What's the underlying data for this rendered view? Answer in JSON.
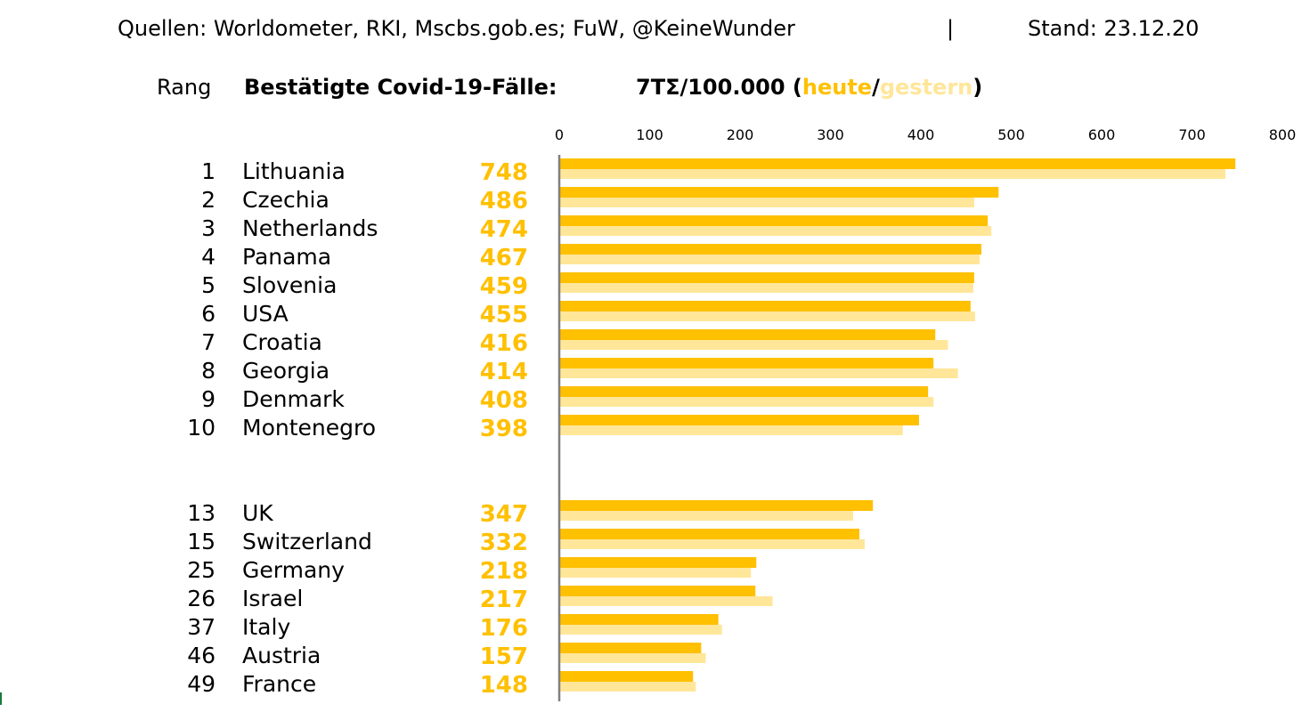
{
  "sources": {
    "text": "Quellen: Worldometer, RKI, Mscbs.gob.es; FuW, @KeineWunder",
    "separator": "|",
    "date": "Stand: 23.12.20"
  },
  "header": {
    "rank": "Rang",
    "title": "Bestätigte Covid-19-Fälle:",
    "metric_prefix": "7TΣ/100.000 (",
    "today": "heute",
    "slash": "/",
    "yesterday": "gestern",
    "metric_suffix": ")"
  },
  "colors": {
    "today": "#FFC000",
    "yesterday": "#FFE699",
    "axis": "#808080",
    "corner_mark": "#1b7a3a"
  },
  "chart_data": {
    "type": "bar",
    "orientation": "horizontal",
    "xlim": [
      0,
      800
    ],
    "xticks": [
      0,
      100,
      200,
      300,
      400,
      500,
      600,
      700,
      800
    ],
    "grid": false,
    "series": [
      {
        "name": "heute",
        "color": "#FFC000"
      },
      {
        "name": "gestern",
        "color": "#FFE699"
      }
    ],
    "rows": [
      {
        "rank": "1",
        "country": "Lithuania",
        "today": 748,
        "yesterday": 737
      },
      {
        "rank": "2",
        "country": "Czechia",
        "today": 486,
        "yesterday": 459
      },
      {
        "rank": "3",
        "country": "Netherlands",
        "today": 474,
        "yesterday": 478
      },
      {
        "rank": "4",
        "country": "Panama",
        "today": 467,
        "yesterday": 465
      },
      {
        "rank": "5",
        "country": "Slovenia",
        "today": 459,
        "yesterday": 458
      },
      {
        "rank": "6",
        "country": "USA",
        "today": 455,
        "yesterday": 460
      },
      {
        "rank": "7",
        "country": "Croatia",
        "today": 416,
        "yesterday": 430
      },
      {
        "rank": "8",
        "country": "Georgia",
        "today": 414,
        "yesterday": 441
      },
      {
        "rank": "9",
        "country": "Denmark",
        "today": 408,
        "yesterday": 414
      },
      {
        "rank": "10",
        "country": "Montenegro",
        "today": 398,
        "yesterday": 380
      },
      {
        "rank": "13",
        "country": "UK",
        "today": 347,
        "yesterday": 325
      },
      {
        "rank": "15",
        "country": "Switzerland",
        "today": 332,
        "yesterday": 338
      },
      {
        "rank": "25",
        "country": "Germany",
        "today": 218,
        "yesterday": 212
      },
      {
        "rank": "26",
        "country": "Israel",
        "today": 217,
        "yesterday": 236
      },
      {
        "rank": "37",
        "country": "Italy",
        "today": 176,
        "yesterday": 180
      },
      {
        "rank": "46",
        "country": "Austria",
        "today": 157,
        "yesterday": 162
      },
      {
        "rank": "49",
        "country": "France",
        "today": 148,
        "yesterday": 151
      }
    ]
  }
}
